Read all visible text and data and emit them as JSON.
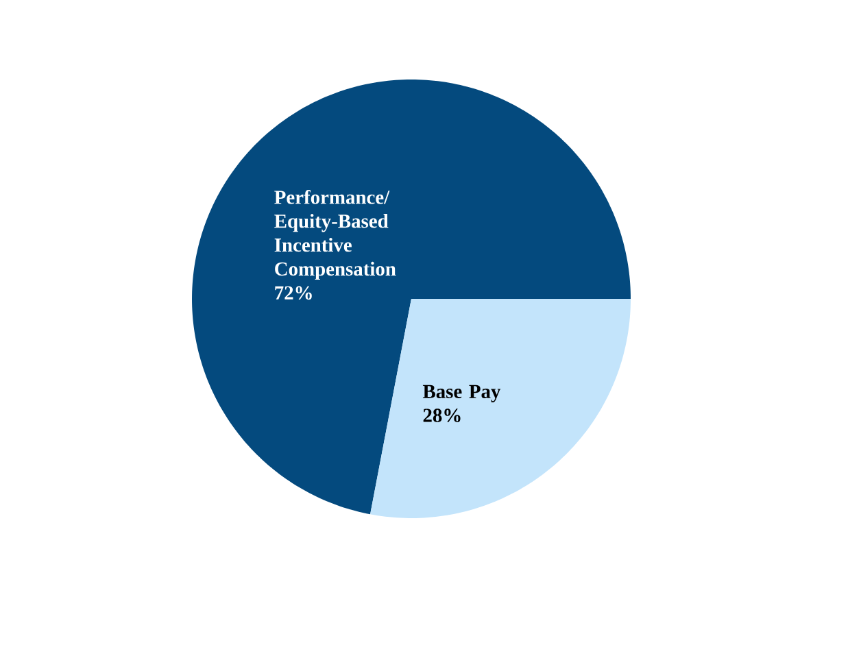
{
  "chart_data": {
    "type": "pie",
    "categories": [
      "Performance/ Equity-Based Incentive Compensation",
      "Base Pay"
    ],
    "values": [
      72,
      28
    ],
    "colors": [
      "#044a7e",
      "#c3e4fb"
    ],
    "value_labels": [
      "72%",
      "28%"
    ]
  }
}
